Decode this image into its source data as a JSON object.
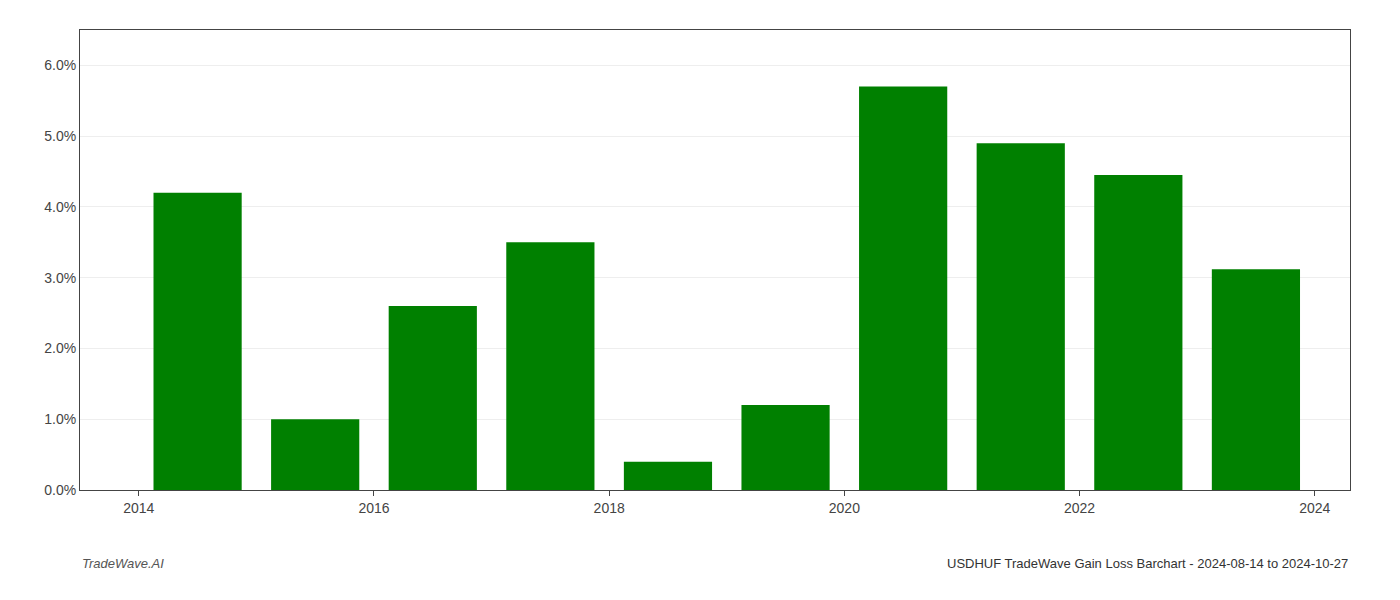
{
  "chart_data": {
    "type": "bar",
    "x": [
      2014,
      2015,
      2016,
      2017,
      2018,
      2019,
      2020,
      2021,
      2022,
      2023
    ],
    "values": [
      0.042,
      0.01,
      0.026,
      0.035,
      0.004,
      0.012,
      0.057,
      0.049,
      0.0445,
      0.0312
    ],
    "color": "#008000",
    "xlim": [
      2013.5,
      2024.3
    ],
    "xticks": [
      2014,
      2016,
      2018,
      2020,
      2022,
      2024
    ],
    "ylim": [
      0,
      0.065
    ],
    "yticks": [
      {
        "value": 0.0,
        "label": "0.0%"
      },
      {
        "value": 0.01,
        "label": "1.0%"
      },
      {
        "value": 0.02,
        "label": "2.0%"
      },
      {
        "value": 0.03,
        "label": "3.0%"
      },
      {
        "value": 0.04,
        "label": "4.0%"
      },
      {
        "value": 0.05,
        "label": "5.0%"
      },
      {
        "value": 0.06,
        "label": "6.0%"
      }
    ],
    "grid": true,
    "annotations": [
      "TradeWave.AI",
      "USDHUF TradeWave Gain Loss Barchart - 2024-08-14 to 2024-10-27"
    ]
  }
}
